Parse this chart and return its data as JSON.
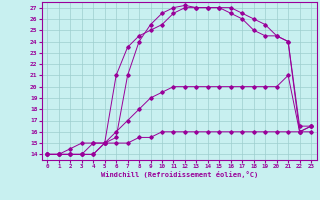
{
  "xlabel": "Windchill (Refroidissement éolien,°C)",
  "bg_color": "#c8f0f0",
  "grid_color": "#9dcece",
  "line_color": "#990099",
  "xlim": [
    -0.5,
    23.5
  ],
  "ylim": [
    13.5,
    27.5
  ],
  "xticks": [
    0,
    1,
    2,
    3,
    4,
    5,
    6,
    7,
    8,
    9,
    10,
    11,
    12,
    13,
    14,
    15,
    16,
    17,
    18,
    19,
    20,
    21,
    22,
    23
  ],
  "yticks": [
    14,
    15,
    16,
    17,
    18,
    19,
    20,
    21,
    22,
    23,
    24,
    25,
    26,
    27
  ],
  "c1x": [
    0,
    1,
    2,
    3,
    4,
    5,
    6,
    7,
    8,
    9,
    10,
    11,
    12,
    13,
    14,
    15,
    16,
    17,
    18,
    19,
    20,
    21,
    22,
    23
  ],
  "c1y": [
    14,
    14,
    14,
    14,
    14,
    15,
    15,
    15,
    15.5,
    15.5,
    16,
    16,
    16,
    16,
    16,
    16,
    16,
    16,
    16,
    16,
    16,
    16,
    16,
    16
  ],
  "c2x": [
    0,
    1,
    2,
    3,
    4,
    5,
    6,
    7,
    8,
    9,
    10,
    11,
    12,
    13,
    14,
    15,
    16,
    17,
    18,
    19,
    20,
    21,
    22,
    23
  ],
  "c2y": [
    14,
    14,
    14,
    14,
    15,
    15,
    16,
    17,
    18,
    19,
    19.5,
    20,
    20,
    20,
    20,
    20,
    20,
    20,
    20,
    20,
    20,
    21,
    16,
    16.5
  ],
  "c3x": [
    0,
    1,
    2,
    3,
    4,
    5,
    6,
    7,
    8,
    9,
    10,
    11,
    12,
    13,
    14,
    15,
    16,
    17,
    18,
    19,
    20,
    21,
    22,
    23
  ],
  "c3y": [
    14,
    14,
    14,
    14,
    14,
    15,
    21,
    23.5,
    24.5,
    25,
    25.5,
    26.5,
    27,
    27,
    27,
    27,
    27,
    26.5,
    26,
    25.5,
    24.5,
    24,
    16.5,
    16.5
  ],
  "c4x": [
    0,
    1,
    2,
    3,
    4,
    5,
    6,
    7,
    8,
    9,
    10,
    11,
    12,
    13,
    14,
    15,
    16,
    17,
    18,
    19,
    20,
    21,
    22,
    23
  ],
  "c4y": [
    14,
    14,
    14.5,
    15,
    15,
    15,
    15.5,
    21,
    24,
    25.5,
    26.5,
    27,
    27.2,
    27,
    27,
    27,
    26.5,
    26,
    25,
    24.5,
    24.5,
    24,
    16,
    16.5
  ]
}
